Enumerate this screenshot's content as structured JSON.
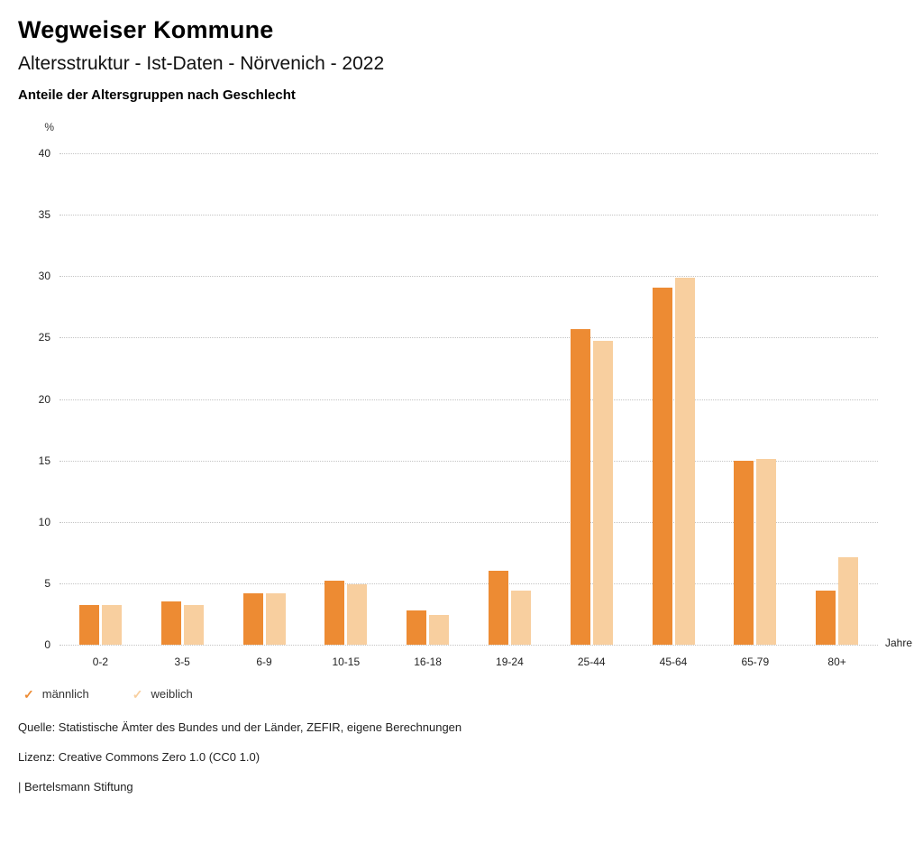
{
  "header": {
    "brand": "Wegweiser Kommune",
    "title": "Altersstruktur - Ist-Daten - Nörvenich - 2022",
    "subtitle": "Anteile der Altersgruppen nach Geschlecht"
  },
  "chart_data": {
    "type": "bar",
    "categories": [
      "0-2",
      "3-5",
      "6-9",
      "10-15",
      "16-18",
      "19-24",
      "25-44",
      "45-64",
      "65-79",
      "80+"
    ],
    "series": [
      {
        "name": "männlich",
        "color": "#ED8B33",
        "values": [
          3.2,
          3.5,
          4.2,
          5.2,
          2.8,
          6.0,
          25.7,
          29.1,
          15.0,
          4.4
        ]
      },
      {
        "name": "weiblich",
        "color": "#F8CF9F",
        "values": [
          3.2,
          3.2,
          4.2,
          4.9,
          2.4,
          4.4,
          24.7,
          29.9,
          15.1,
          7.1
        ]
      }
    ],
    "title": "Anteile der Altersgruppen nach Geschlecht",
    "xlabel": "Jahre",
    "ylabel": "%",
    "ylim": [
      0,
      40
    ],
    "yticks": [
      0,
      5,
      10,
      15,
      20,
      25,
      30,
      35,
      40
    ],
    "grid": true,
    "legend_position": "bottom"
  },
  "footer": {
    "source": "Quelle: Statistische Ämter des Bundes und der Länder, ZEFIR, eigene Berechnungen",
    "license": "Lizenz: Creative Commons Zero 1.0 (CC0 1.0)",
    "attribution": "| Bertelsmann Stiftung"
  }
}
